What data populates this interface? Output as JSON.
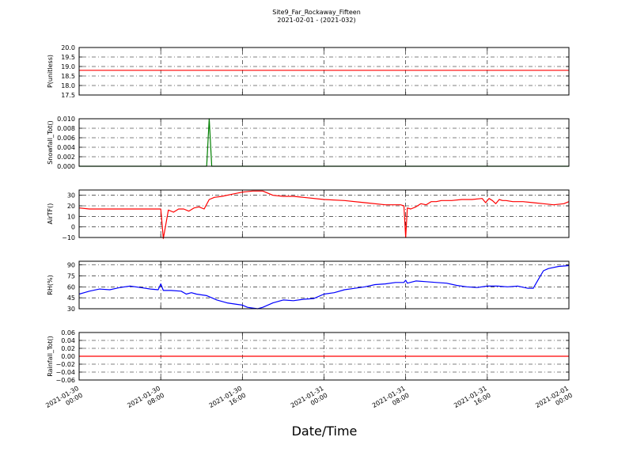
{
  "figure": {
    "title": "Site9_Far_Rockaway_Fifteen",
    "subtitle": "2021-02-01 - (2021-032)",
    "xlabel": "Date/Time",
    "xticks": [
      {
        "line1": "2021-01-30",
        "line2": "00:00"
      },
      {
        "line1": "2021-01-30",
        "line2": "08:00"
      },
      {
        "line1": "2021-01-30",
        "line2": "16:00"
      },
      {
        "line1": "2021-01-31",
        "line2": "00:00"
      },
      {
        "line1": "2021-01-31",
        "line2": "08:00"
      },
      {
        "line1": "2021-01-31",
        "line2": "16:00"
      },
      {
        "line1": "2021-02-01",
        "line2": "00:00"
      }
    ],
    "colors": {
      "red": "#ff0000",
      "green": "#007f00",
      "blue": "#0000ff",
      "axis": "#000000"
    }
  },
  "chart_data": [
    {
      "type": "line",
      "ylabel": "P(unitless)",
      "ylim": [
        17.5,
        20.0
      ],
      "yticks": [
        "20.0",
        "19.5",
        "19.0",
        "18.5",
        "18.0",
        "17.5"
      ],
      "grid": true,
      "series": [
        {
          "color": "#ff0000",
          "x": [
            "2021-01-30 00:00",
            "2021-02-01 00:00"
          ],
          "y": [
            18.8,
            18.8
          ]
        }
      ]
    },
    {
      "type": "line",
      "ylabel": "Snowfall_Tot()",
      "ylim": [
        0.0,
        0.01
      ],
      "yticks": [
        "0.010",
        "0.008",
        "0.006",
        "0.004",
        "0.002",
        "0.000"
      ],
      "grid": true,
      "series": [
        {
          "color": "#007f00",
          "x": [
            "2021-01-30 00:00",
            "2021-01-30 12:30",
            "2021-01-30 12:45",
            "2021-01-30 13:00",
            "2021-02-01 00:00"
          ],
          "y": [
            0.0,
            0.0,
            0.01,
            0.0,
            0.0
          ]
        }
      ]
    },
    {
      "type": "line",
      "ylabel": "AirTF()",
      "ylim": [
        -10,
        35
      ],
      "yticks": [
        "30",
        "20",
        "10",
        "0",
        "−10"
      ],
      "grid": true,
      "series": [
        {
          "color": "#ff0000",
          "x": [
            "2021-01-30 00:00",
            "2021-01-30 01:00",
            "2021-01-30 02:00",
            "2021-01-30 03:00",
            "2021-01-30 04:00",
            "2021-01-30 05:00",
            "2021-01-30 06:00",
            "2021-01-30 07:00",
            "2021-01-30 07:45",
            "2021-01-30 08:00",
            "2021-01-30 08:15",
            "2021-01-30 08:45",
            "2021-01-30 09:15",
            "2021-01-30 09:45",
            "2021-01-30 10:15",
            "2021-01-30 10:45",
            "2021-01-30 11:15",
            "2021-01-30 11:45",
            "2021-01-30 12:15",
            "2021-01-30 12:45",
            "2021-01-30 13:15",
            "2021-01-30 14:00",
            "2021-01-30 15:00",
            "2021-01-30 16:00",
            "2021-01-30 17:00",
            "2021-01-30 18:00",
            "2021-01-30 19:00",
            "2021-01-30 20:00",
            "2021-01-30 21:00",
            "2021-01-30 22:00",
            "2021-01-31 00:00",
            "2021-01-31 02:00",
            "2021-01-31 04:00",
            "2021-01-31 06:00",
            "2021-01-31 07:30",
            "2021-01-31 07:50",
            "2021-01-31 08:00",
            "2021-01-31 08:10",
            "2021-01-31 08:30",
            "2021-01-31 09:00",
            "2021-01-31 09:30",
            "2021-01-31 10:00",
            "2021-01-31 10:30",
            "2021-01-31 11:00",
            "2021-01-31 11:30",
            "2021-01-31 12:30",
            "2021-01-31 13:30",
            "2021-01-31 14:30",
            "2021-01-31 15:30",
            "2021-01-31 15:50",
            "2021-01-31 16:10",
            "2021-01-31 16:30",
            "2021-01-31 16:50",
            "2021-01-31 17:10",
            "2021-01-31 17:30",
            "2021-01-31 17:50",
            "2021-01-31 18:30",
            "2021-01-31 19:30",
            "2021-01-31 20:30",
            "2021-01-31 21:30",
            "2021-01-31 22:30",
            "2021-01-31 23:30",
            "2021-02-01 00:00"
          ],
          "y": [
            18,
            17,
            17,
            17,
            17,
            17,
            17,
            17,
            17,
            17,
            -11,
            16,
            14,
            17,
            17,
            15,
            18,
            19,
            17,
            26,
            28,
            29,
            31,
            33,
            34,
            34,
            30,
            29,
            29,
            28,
            26,
            25,
            23,
            21,
            21,
            20,
            -10,
            18,
            17,
            19,
            22,
            21,
            24,
            24,
            25,
            25,
            26,
            26,
            27,
            23,
            27,
            25,
            22,
            26,
            25,
            25,
            24,
            24,
            23,
            22,
            21,
            22,
            24
          ]
        }
      ]
    },
    {
      "type": "line",
      "ylabel": "RH(%)",
      "ylim": [
        30,
        95
      ],
      "yticks": [
        "90",
        "75",
        "60",
        "45",
        "30"
      ],
      "grid": true,
      "series": [
        {
          "color": "#0000ff",
          "x": [
            "2021-01-30 00:00",
            "2021-01-30 00:30",
            "2021-01-30 01:00",
            "2021-01-30 02:00",
            "2021-01-30 03:00",
            "2021-01-30 04:00",
            "2021-01-30 05:00",
            "2021-01-30 06:00",
            "2021-01-30 07:00",
            "2021-01-30 07:45",
            "2021-01-30 08:00",
            "2021-01-30 08:15",
            "2021-01-30 09:00",
            "2021-01-30 10:00",
            "2021-01-30 10:30",
            "2021-01-30 11:00",
            "2021-01-30 11:30",
            "2021-01-30 12:30",
            "2021-01-30 13:30",
            "2021-01-30 14:30",
            "2021-01-30 15:30",
            "2021-01-30 16:00",
            "2021-01-30 16:30",
            "2021-01-30 17:00",
            "2021-01-30 17:30",
            "2021-01-30 18:00",
            "2021-01-30 19:00",
            "2021-01-30 20:00",
            "2021-01-30 21:00",
            "2021-01-30 22:00",
            "2021-01-30 23:00",
            "2021-01-31 00:00",
            "2021-01-31 01:00",
            "2021-01-31 02:00",
            "2021-01-31 03:00",
            "2021-01-31 04:00",
            "2021-01-31 05:00",
            "2021-01-31 06:00",
            "2021-01-31 07:00",
            "2021-01-31 07:50",
            "2021-01-31 08:00",
            "2021-01-31 08:10",
            "2021-01-31 09:00",
            "2021-01-31 10:00",
            "2021-01-31 11:00",
            "2021-01-31 12:00",
            "2021-01-31 13:00",
            "2021-01-31 14:00",
            "2021-01-31 15:00",
            "2021-01-31 16:00",
            "2021-01-31 17:00",
            "2021-01-31 18:00",
            "2021-01-31 19:00",
            "2021-01-31 20:00",
            "2021-01-31 20:30",
            "2021-01-31 21:00",
            "2021-01-31 21:30",
            "2021-01-31 22:00",
            "2021-01-31 23:00",
            "2021-02-01 00:00"
          ],
          "y": [
            50,
            52,
            54,
            57,
            56,
            59,
            61,
            59,
            57,
            56,
            64,
            55,
            55,
            54,
            50,
            52,
            50,
            48,
            42,
            38,
            36,
            35,
            32,
            31,
            30,
            32,
            38,
            42,
            41,
            43,
            44,
            50,
            52,
            56,
            58,
            60,
            63,
            64,
            66,
            66,
            69,
            65,
            68,
            67,
            66,
            65,
            62,
            60,
            59,
            61,
            61,
            60,
            61,
            58,
            58,
            70,
            82,
            85,
            88,
            89
          ]
        }
      ]
    },
    {
      "type": "line",
      "ylabel": "Rainfall_Tot()",
      "ylim": [
        -0.06,
        0.06
      ],
      "yticks": [
        "0.06",
        "0.04",
        "0.02",
        "0.00",
        "−0.02",
        "−0.04",
        "−0.06"
      ],
      "grid": true,
      "series": [
        {
          "color": "#ff0000",
          "x": [
            "2021-01-30 00:00",
            "2021-02-01 00:00"
          ],
          "y": [
            0.0,
            0.0
          ]
        }
      ]
    }
  ]
}
